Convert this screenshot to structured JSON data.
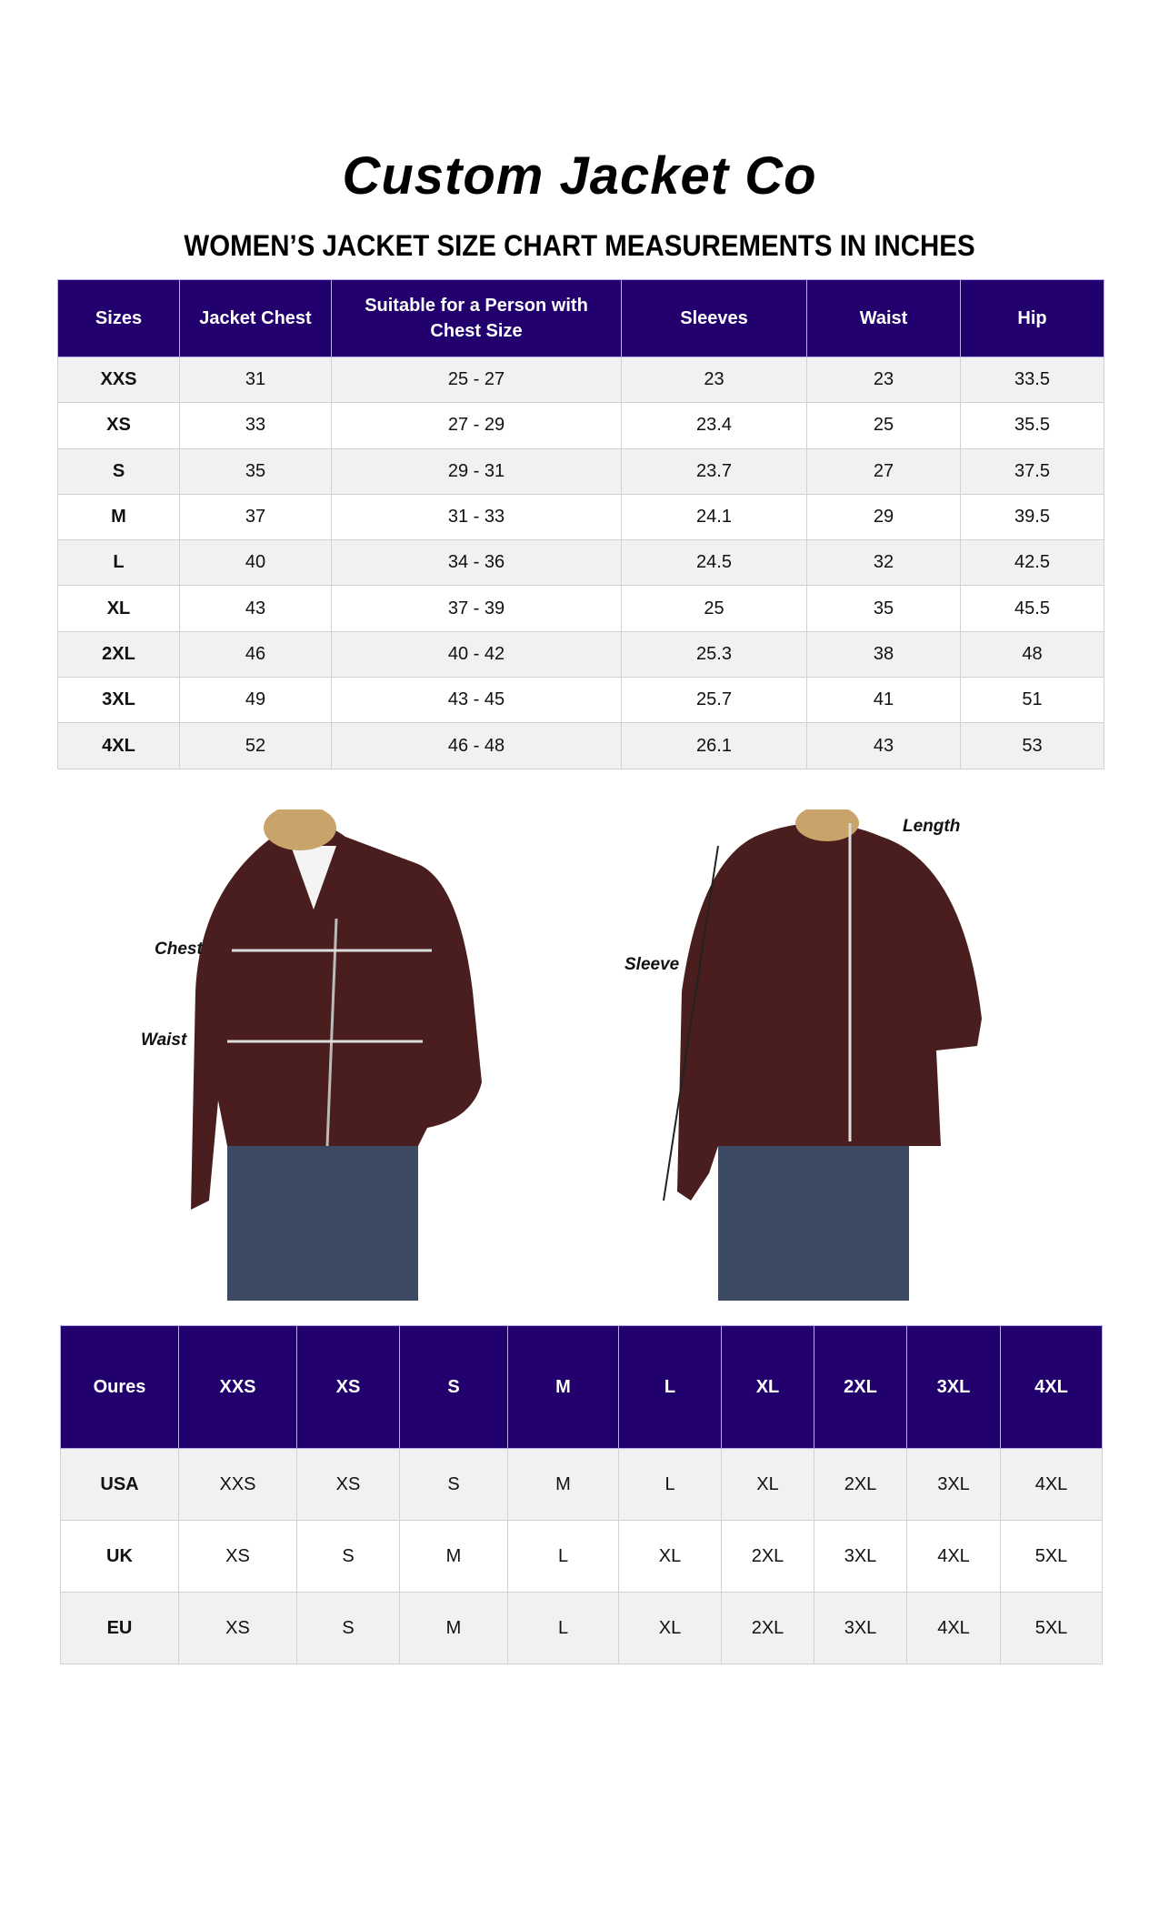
{
  "brand": "Custom Jacket Co",
  "subtitle": "WOMEN’S JACKET SIZE CHART MEASUREMENTS IN INCHES",
  "size_table": {
    "headers": [
      "Sizes",
      "Jacket Chest",
      "Suitable for a Person with Chest Size",
      "Sleeves",
      "Waist",
      "Hip"
    ],
    "rows": [
      [
        "XXS",
        "31",
        "25 - 27",
        "23",
        "23",
        "33.5"
      ],
      [
        "XS",
        "33",
        "27 - 29",
        "23.4",
        "25",
        "35.5"
      ],
      [
        "S",
        "35",
        "29 - 31",
        "23.7",
        "27",
        "37.5"
      ],
      [
        "M",
        "37",
        "31 - 33",
        "24.1",
        "29",
        "39.5"
      ],
      [
        "L",
        "40",
        "34 - 36",
        "24.5",
        "32",
        "42.5"
      ],
      [
        "XL",
        "43",
        "37 - 39",
        "25",
        "35",
        "45.5"
      ],
      [
        "2XL",
        "46",
        "40 - 42",
        "25.3",
        "38",
        "48"
      ],
      [
        "3XL",
        "49",
        "43 - 45",
        "25.7",
        "41",
        "51"
      ],
      [
        "4XL",
        "52",
        "46 - 48",
        "26.1",
        "43",
        "53"
      ]
    ]
  },
  "photo_labels": {
    "chest": "Chest",
    "waist": "Waist",
    "sleeve": "Sleeve",
    "length": "Length"
  },
  "conversion_table": {
    "headers": [
      "Oures",
      "XXS",
      "XS",
      "S",
      "M",
      "L",
      "XL",
      "2XL",
      "3XL",
      "4XL"
    ],
    "rows": [
      [
        "USA",
        "XXS",
        "XS",
        "S",
        "M",
        "L",
        "XL",
        "2XL",
        "3XL",
        "4XL"
      ],
      [
        "UK",
        "XS",
        "S",
        "M",
        "L",
        "XL",
        "2XL",
        "3XL",
        "4XL",
        "5XL"
      ],
      [
        "EU",
        "XS",
        "S",
        "M",
        "L",
        "XL",
        "2XL",
        "3XL",
        "4XL",
        "5XL"
      ]
    ]
  },
  "colors": {
    "header_bg": "#22006e",
    "jacket": "#4a1e1e",
    "row_alt": "#f1f1f1"
  }
}
